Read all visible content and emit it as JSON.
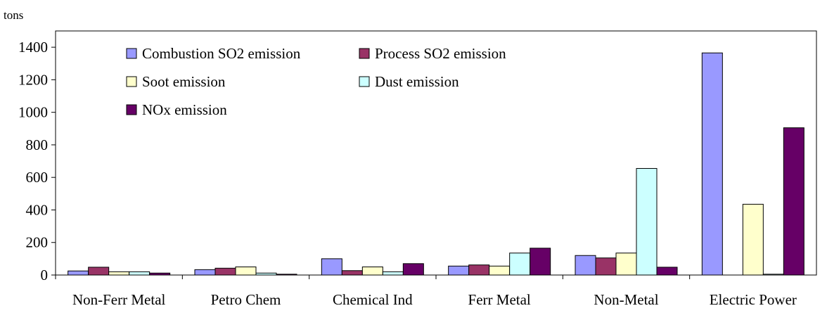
{
  "chart_data": {
    "type": "bar",
    "ylabel": "tons",
    "ylim": [
      0,
      1500
    ],
    "yticks": [
      0,
      200,
      400,
      600,
      800,
      1000,
      1200,
      1400
    ],
    "grid": false,
    "legend_position": "top-left",
    "categories": [
      "Non-Ferr Metal",
      "Petro Chem",
      "Chemical Ind",
      "Ferr Metal",
      "Non-Metal",
      "Electric Power"
    ],
    "series": [
      {
        "name": "Combustion SO2 emission",
        "color": "#9999ff",
        "values": [
          25,
          33,
          100,
          55,
          120,
          1365
        ]
      },
      {
        "name": "Process SO2 emission",
        "color": "#993366",
        "values": [
          48,
          42,
          27,
          62,
          105,
          0
        ]
      },
      {
        "name": "Soot emission",
        "color": "#ffffcc",
        "values": [
          20,
          50,
          50,
          55,
          135,
          435
        ]
      },
      {
        "name": "Dust emission",
        "color": "#ccffff",
        "values": [
          20,
          12,
          20,
          135,
          655,
          5
        ]
      },
      {
        "name": "NOx emission",
        "color": "#660066",
        "values": [
          12,
          5,
          70,
          165,
          48,
          905
        ]
      }
    ]
  }
}
